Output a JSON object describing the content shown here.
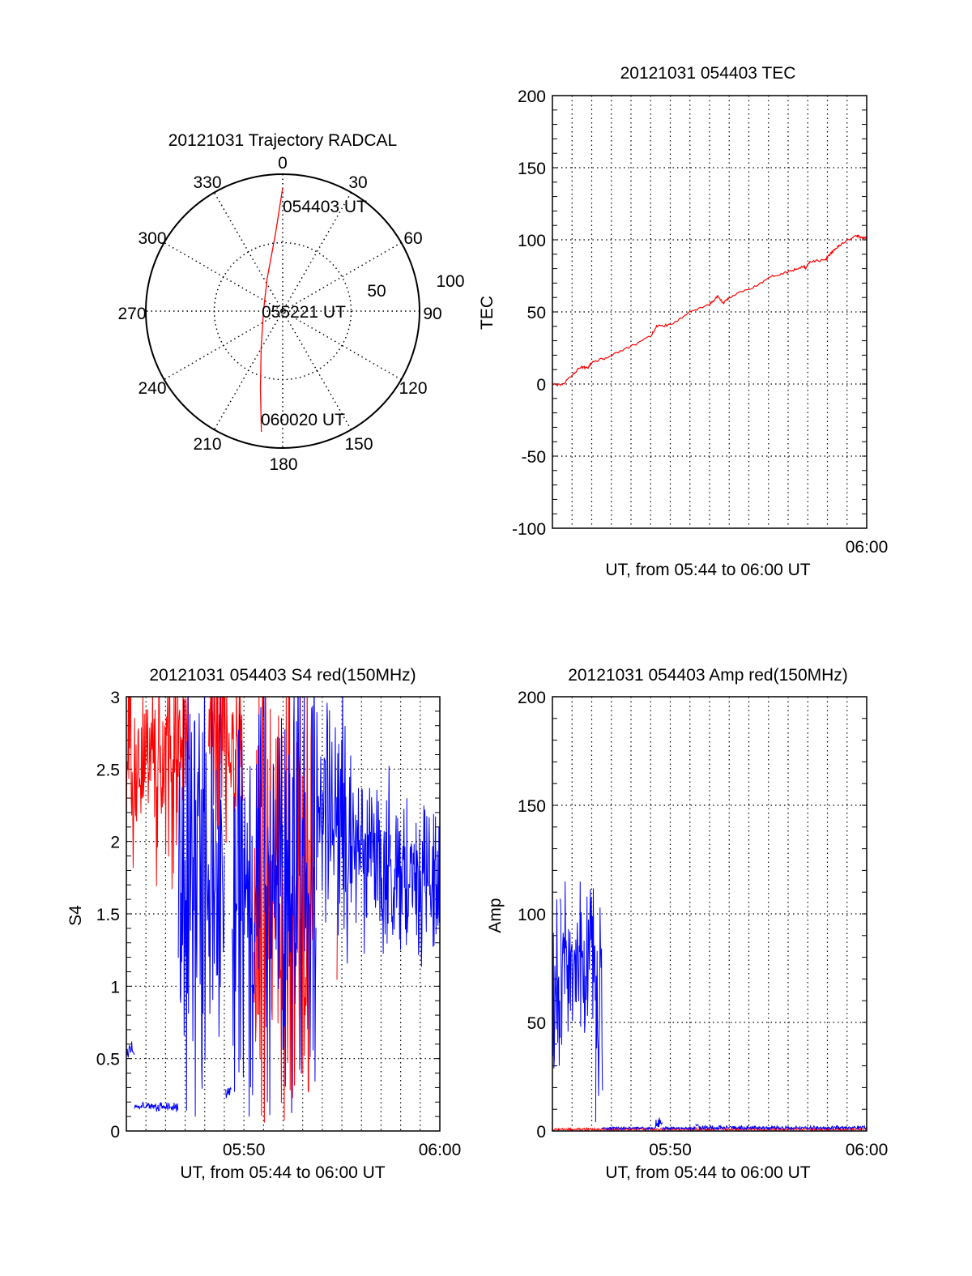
{
  "chart_data": [
    {
      "type": "polar",
      "title": "20121031 Trajectory RADCAL",
      "angle_labels": [
        "0",
        "30",
        "60",
        "90",
        "120",
        "150",
        "180",
        "210",
        "240",
        "270",
        "300",
        "330"
      ],
      "radial_labels": [
        "50",
        "100"
      ],
      "rlim": [
        0,
        100
      ],
      "time_labels": [
        "054403 UT",
        "055221 UT",
        "060020 UT"
      ],
      "color": "#ff0000",
      "trajectory_az_r": [
        [
          0,
          90
        ],
        [
          354.5,
          56
        ],
        [
          334,
          26
        ],
        [
          270,
          14
        ],
        [
          210,
          31.5
        ],
        [
          196,
          59
        ],
        [
          190,
          89.6
        ]
      ]
    },
    {
      "type": "line",
      "title": "20121031 054403 TEC",
      "xlabel": "UT, from 05:44 to 06:00 UT",
      "ylabel": "TEC",
      "xlim": [
        0,
        16
      ],
      "ylim": [
        -100,
        200
      ],
      "yticks": [
        "-100",
        "-50",
        "0",
        "50",
        "100",
        "150",
        "200"
      ],
      "xtick_labels": [
        {
          "t": 16,
          "label": "06:00"
        }
      ],
      "grid": true,
      "series": [
        {
          "name": "TEC",
          "color": "#ff0000",
          "x": [
            0,
            0.5,
            0.9,
            1.44,
            1.8,
            2.0,
            2.7,
            4.0,
            5.0,
            5.3,
            6.0,
            6.9,
            8.0,
            8.4,
            8.7,
            9.0,
            10.2,
            11.2,
            12.1,
            12.8,
            12.9,
            13.1,
            13.9,
            14.2,
            14.6,
            15.5,
            15.8,
            16
          ],
          "y": [
            0,
            -1,
            5,
            12,
            11,
            15,
            18,
            26,
            33,
            40,
            41,
            49,
            55,
            61,
            56,
            60,
            67,
            75,
            78,
            82,
            80,
            85,
            86,
            91,
            96,
            103,
            101,
            102
          ]
        }
      ]
    },
    {
      "type": "line",
      "title": "20121031 054403 S4 red(150MHz)",
      "xlabel": "UT, from 05:44 to 06:00 UT",
      "ylabel": "S4",
      "xlim": [
        0,
        16
      ],
      "ylim": [
        0,
        3
      ],
      "yticks": [
        "0",
        "0.5",
        "1",
        "1.5",
        "2",
        "2.5",
        "3"
      ],
      "xtick_labels": [
        {
          "t": 6,
          "label": "05:50"
        },
        {
          "t": 16,
          "label": "06:00"
        }
      ],
      "grid": true,
      "series": [
        {
          "name": "red",
          "color": "#ff0000",
          "segments": [
            {
              "t": [
                0,
                2.6
              ],
              "range": [
                1.65,
                3.4
              ]
            },
            {
              "t": [
                2.6,
                3.2
              ],
              "range": [
                2.0,
                3.4
              ]
            },
            {
              "t": [
                4.2,
                5.95
              ],
              "range": [
                1.9,
                3.4
              ]
            },
            {
              "t": [
                6.5,
                9.6
              ],
              "range": [
                0,
                3.4
              ]
            },
            {
              "t": [
                10.75,
                10.8
              ],
              "range": [
                0,
                3.4
              ]
            }
          ]
        },
        {
          "name": "blue",
          "color": "#0000ff",
          "segments": [
            {
              "t": [
                0,
                0.4
              ],
              "range": [
                0.5,
                0.62
              ]
            },
            {
              "t": [
                0.4,
                2.65
              ],
              "range": [
                0.13,
                0.2
              ]
            },
            {
              "t": [
                2.65,
                4.6
              ],
              "range": [
                0,
                3.4
              ]
            },
            {
              "t": [
                4.6,
                5.0
              ],
              "range": [
                0,
                3.4
              ]
            },
            {
              "t": [
                5.05,
                5.35
              ],
              "range": [
                0.22,
                0.3
              ]
            },
            {
              "t": [
                5.4,
                6.9
              ],
              "range": [
                0,
                3.4
              ]
            },
            {
              "t": [
                7.0,
                9.7
              ],
              "range": [
                0,
                3.4
              ]
            },
            {
              "t": [
                9.7,
                11.2
              ],
              "range": [
                1.3,
                3.2
              ]
            },
            {
              "t": [
                11.2,
                13.5
              ],
              "range": [
                1.1,
                2.6
              ]
            },
            {
              "t": [
                13.5,
                16
              ],
              "range": [
                1.05,
                2.4
              ]
            }
          ]
        }
      ]
    },
    {
      "type": "line",
      "title": "20121031 054403 Amp red(150MHz)",
      "xlabel": "UT, from 05:44 to 06:00 UT",
      "ylabel": "Amp",
      "xlim": [
        0,
        16
      ],
      "ylim": [
        0,
        200
      ],
      "yticks": [
        "0",
        "50",
        "100",
        "150",
        "200"
      ],
      "xtick_labels": [
        {
          "t": 6,
          "label": "05:50"
        },
        {
          "t": 16,
          "label": "06:00"
        }
      ],
      "grid": true,
      "series": [
        {
          "name": "red",
          "color": "#ff0000",
          "segments": [
            {
              "t": [
                0,
                16
              ],
              "range": [
                0,
                1.5
              ]
            }
          ]
        },
        {
          "name": "blue",
          "color": "#0000ff",
          "segments": [
            {
              "t": [
                0,
                0.4
              ],
              "range": [
                0,
                128
              ]
            },
            {
              "t": [
                0.4,
                2.2
              ],
              "range": [
                38,
                118
              ]
            },
            {
              "t": [
                2.2,
                2.55
              ],
              "range": [
                0,
                112
              ]
            },
            {
              "t": [
                2.55,
                5.25
              ],
              "range": [
                0.5,
                2
              ]
            },
            {
              "t": [
                5.25,
                5.6
              ],
              "range": [
                1,
                7
              ]
            },
            {
              "t": [
                5.6,
                7.3
              ],
              "range": [
                0.5,
                2
              ]
            },
            {
              "t": [
                7.3,
                7.45
              ],
              "range": [
                1,
                5
              ]
            },
            {
              "t": [
                7.45,
                16
              ],
              "range": [
                0.5,
                2.5
              ]
            }
          ]
        }
      ]
    }
  ]
}
